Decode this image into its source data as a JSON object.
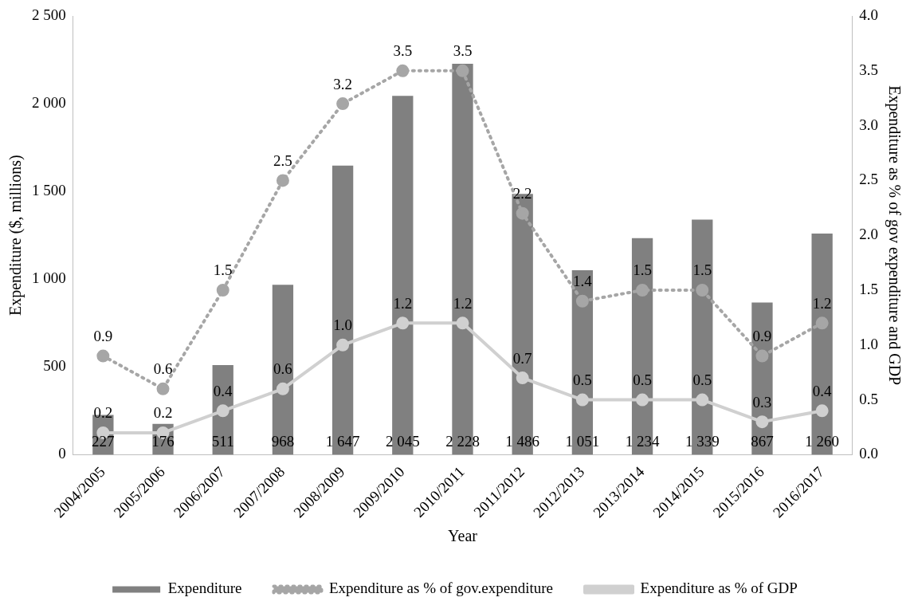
{
  "chart_data": {
    "type": "bar",
    "xlabel": "Year",
    "ylabel": "Expenditure ($, millions)",
    "y2label": "Expenditure as % of gov expenditure and GDP",
    "categories": [
      "2004/2005",
      "2005/2006",
      "2006/2007",
      "2007/2008",
      "2008/2009",
      "2009/2010",
      "2010/2011",
      "2011/2012",
      "2012/2013",
      "2013/2014",
      "2014/2015",
      "2015/2016",
      "2016/2017"
    ],
    "series": [
      {
        "name": "Expenditure",
        "type": "bar",
        "color": "#808080",
        "values": [
          227,
          176,
          511,
          968,
          1647,
          2045,
          2228,
          1486,
          1051,
          1234,
          1339,
          867,
          1260
        ],
        "value_labels": [
          "227",
          "176",
          "511",
          "968",
          "1 647",
          "2 045",
          "2 228",
          "1 486",
          "1 051",
          "1 234",
          "1 339",
          "867",
          "1 260"
        ]
      },
      {
        "name": "Expenditure as % of gov.expenditure",
        "type": "line",
        "axis": "y2",
        "line_style": "dotted",
        "color": "#a6a6a6",
        "values": [
          0.9,
          0.6,
          1.5,
          2.5,
          3.2,
          3.5,
          3.5,
          2.2,
          1.4,
          1.5,
          1.5,
          0.9,
          1.2
        ],
        "value_labels": [
          "0.9",
          "0.6",
          "1.5",
          "2.5",
          "3.2",
          "3.5",
          "3.5",
          "2.2",
          "1.4",
          "1.5",
          "1.5",
          "0.9",
          "1.2"
        ]
      },
      {
        "name": "Expenditure as % of GDP",
        "type": "line",
        "axis": "y2",
        "line_style": "solid",
        "color": "#d0d0d0",
        "values": [
          0.2,
          0.2,
          0.4,
          0.6,
          1.0,
          1.2,
          1.2,
          0.7,
          0.5,
          0.5,
          0.5,
          0.3,
          0.4
        ],
        "value_labels": [
          "0.2",
          "0.2",
          "0.4",
          "0.6",
          "1.0",
          "1.2",
          "1.2",
          "0.7",
          "0.5",
          "0.5",
          "0.5",
          "0.3",
          "0.4"
        ]
      }
    ],
    "ylim": [
      0,
      2500
    ],
    "yticks": [
      0,
      500,
      {
        "value": 1000,
        "label": "1 000"
      },
      {
        "value": 1500,
        "label": "1 500"
      },
      {
        "value": 2000,
        "label": "2 000"
      },
      {
        "value": 2500,
        "label": "2 500"
      }
    ],
    "y2lim": [
      0,
      4
    ],
    "y2ticks": [
      {
        "value": 0,
        "label": "0.0"
      },
      {
        "value": 0.5,
        "label": "0.5"
      },
      {
        "value": 1,
        "label": "1.0"
      },
      {
        "value": 1.5,
        "label": "1.5"
      },
      {
        "value": 2,
        "label": "2.0"
      },
      {
        "value": 2.5,
        "label": "2.5"
      },
      {
        "value": 3,
        "label": "3.0"
      },
      {
        "value": 3.5,
        "label": "3.5"
      },
      {
        "value": 4,
        "label": "4.0"
      }
    ],
    "grid": false,
    "legend": "bottom",
    "marker": "circle"
  }
}
